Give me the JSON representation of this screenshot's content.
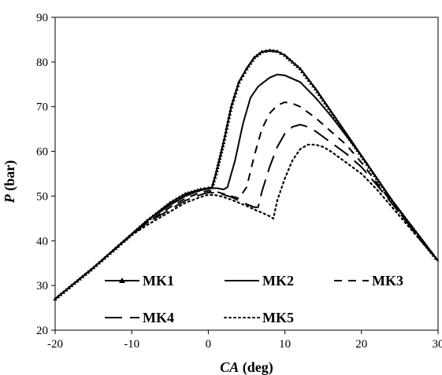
{
  "chart_data": {
    "type": "line",
    "title": "",
    "xlabel_italic": "CA",
    "xlabel_rest": " (deg)",
    "ylabel_italic": "P",
    "ylabel_rest": " (bar)",
    "xlim": [
      -20,
      30
    ],
    "ylim": [
      20,
      90
    ],
    "xticks": [
      -20,
      -10,
      0,
      10,
      20,
      30
    ],
    "yticks": [
      20,
      30,
      40,
      50,
      60,
      70,
      80,
      90
    ],
    "legend_position": "inside-bottom",
    "series": [
      {
        "name": "MK1",
        "style": "solid-triangle",
        "color": "#000000",
        "points": [
          [
            -20,
            27
          ],
          [
            -15,
            34
          ],
          [
            -10,
            41.5
          ],
          [
            -8,
            44.5
          ],
          [
            -5,
            48.5
          ],
          [
            -3,
            50.5
          ],
          [
            -1,
            51.5
          ],
          [
            0,
            51.8
          ],
          [
            0.5,
            52
          ],
          [
            1,
            55
          ],
          [
            1.5,
            58.5
          ],
          [
            2,
            62
          ],
          [
            3,
            70
          ],
          [
            4,
            75.5
          ],
          [
            5,
            78.5
          ],
          [
            6,
            81
          ],
          [
            7,
            82.3
          ],
          [
            8,
            82.6
          ],
          [
            9,
            82.4
          ],
          [
            10,
            81.5
          ],
          [
            12,
            78.5
          ],
          [
            14,
            74
          ],
          [
            16,
            69
          ],
          [
            18,
            64
          ],
          [
            20,
            59
          ],
          [
            22,
            54
          ],
          [
            24,
            49
          ],
          [
            26,
            44.5
          ],
          [
            28,
            40
          ],
          [
            30,
            35.5
          ]
        ]
      },
      {
        "name": "MK2",
        "style": "solid",
        "color": "#000000",
        "points": [
          [
            -20,
            27
          ],
          [
            -15,
            34
          ],
          [
            -10,
            41.5
          ],
          [
            -8,
            44.5
          ],
          [
            -5,
            48
          ],
          [
            -3,
            50
          ],
          [
            -1,
            51.3
          ],
          [
            0,
            51.7
          ],
          [
            1,
            51.8
          ],
          [
            2,
            51.5
          ],
          [
            2.5,
            52
          ],
          [
            3.5,
            58
          ],
          [
            4.5,
            66
          ],
          [
            5.5,
            72
          ],
          [
            6.5,
            74.5
          ],
          [
            8,
            76.5
          ],
          [
            9,
            77.2
          ],
          [
            10,
            77
          ],
          [
            12,
            75.5
          ],
          [
            14,
            72
          ],
          [
            16,
            68
          ],
          [
            18,
            63.5
          ],
          [
            20,
            59
          ],
          [
            22,
            54
          ],
          [
            24,
            49
          ],
          [
            26,
            44.5
          ],
          [
            28,
            40
          ],
          [
            30,
            35.5
          ]
        ]
      },
      {
        "name": "MK3",
        "style": "dash",
        "color": "#000000",
        "points": [
          [
            -20,
            27
          ],
          [
            -15,
            34
          ],
          [
            -10,
            41.5
          ],
          [
            -8,
            44
          ],
          [
            -5,
            47.5
          ],
          [
            -3,
            49.5
          ],
          [
            -1,
            50.8
          ],
          [
            0,
            51.2
          ],
          [
            1,
            51
          ],
          [
            2,
            50.5
          ],
          [
            3,
            50
          ],
          [
            4,
            49.5
          ],
          [
            5,
            52
          ],
          [
            6,
            59
          ],
          [
            7,
            65
          ],
          [
            8,
            68.5
          ],
          [
            9,
            70.3
          ],
          [
            10,
            71
          ],
          [
            11,
            70.7
          ],
          [
            12,
            70
          ],
          [
            14,
            67.5
          ],
          [
            16,
            64.5
          ],
          [
            18,
            61.5
          ],
          [
            20,
            57.5
          ],
          [
            22,
            53
          ],
          [
            24,
            48.5
          ],
          [
            26,
            44
          ],
          [
            28,
            39.5
          ],
          [
            30,
            35.5
          ]
        ]
      },
      {
        "name": "MK4",
        "style": "longdash",
        "color": "#000000",
        "points": [
          [
            -20,
            27
          ],
          [
            -15,
            34
          ],
          [
            -10,
            41.5
          ],
          [
            -8,
            44
          ],
          [
            -5,
            47
          ],
          [
            -3,
            49
          ],
          [
            -1,
            50.3
          ],
          [
            0,
            50.8
          ],
          [
            1,
            50.7
          ],
          [
            2,
            50.3
          ],
          [
            3,
            49.8
          ],
          [
            4,
            49
          ],
          [
            5,
            48.2
          ],
          [
            6,
            47.5
          ],
          [
            6.5,
            47.5
          ],
          [
            7,
            51
          ],
          [
            8,
            56.5
          ],
          [
            9,
            61
          ],
          [
            10,
            64
          ],
          [
            11,
            65.5
          ],
          [
            12,
            66
          ],
          [
            13,
            65.5
          ],
          [
            14,
            64.5
          ],
          [
            16,
            62
          ],
          [
            18,
            59.5
          ],
          [
            20,
            56.5
          ],
          [
            22,
            52.5
          ],
          [
            24,
            48.3
          ],
          [
            26,
            44
          ],
          [
            28,
            39.5
          ],
          [
            30,
            35.5
          ]
        ]
      },
      {
        "name": "MK5",
        "style": "dot",
        "color": "#000000",
        "points": [
          [
            -20,
            27
          ],
          [
            -15,
            34
          ],
          [
            -10,
            41.3
          ],
          [
            -8,
            43.5
          ],
          [
            -5,
            46.5
          ],
          [
            -3,
            48.5
          ],
          [
            -1,
            49.8
          ],
          [
            0,
            50.3
          ],
          [
            1,
            50.2
          ],
          [
            2,
            49.8
          ],
          [
            3,
            49.2
          ],
          [
            4,
            48.5
          ],
          [
            5,
            47.8
          ],
          [
            6,
            47
          ],
          [
            7,
            46.3
          ],
          [
            8,
            45.5
          ],
          [
            8.5,
            45
          ],
          [
            9,
            49
          ],
          [
            10,
            54
          ],
          [
            11,
            58
          ],
          [
            12,
            60.5
          ],
          [
            13,
            61.5
          ],
          [
            14,
            61.5
          ],
          [
            15,
            61
          ],
          [
            16,
            60
          ],
          [
            18,
            57.5
          ],
          [
            20,
            55
          ],
          [
            22,
            51.5
          ],
          [
            24,
            47.5
          ],
          [
            26,
            43.5
          ],
          [
            28,
            39.5
          ],
          [
            30,
            35.5
          ]
        ]
      }
    ]
  }
}
